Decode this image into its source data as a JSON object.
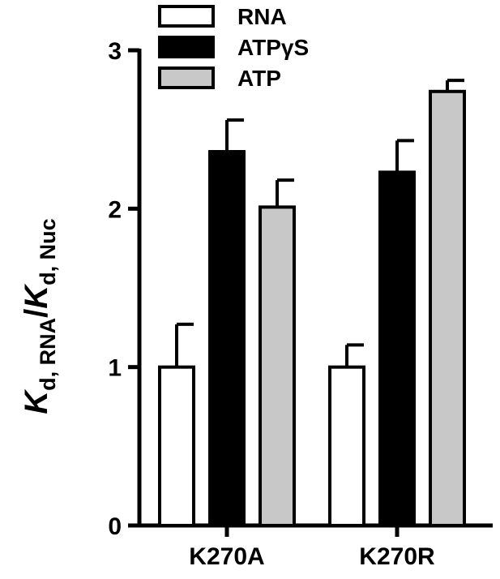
{
  "chart_data": {
    "type": "bar",
    "categories": [
      "K270A",
      "K270R"
    ],
    "series": [
      {
        "name": "RNA",
        "values": [
          1.0,
          1.0
        ],
        "errors": [
          0.27,
          0.14
        ],
        "color": "#ffffff"
      },
      {
        "name": "ATPγS",
        "values": [
          2.36,
          2.23
        ],
        "errors": [
          0.2,
          0.2
        ],
        "color": "#000000"
      },
      {
        "name": "ATP",
        "values": [
          2.01,
          2.74
        ],
        "errors": [
          0.17,
          0.07
        ],
        "color": "#c8c8c8"
      }
    ],
    "ylim": [
      0,
      3
    ],
    "yticks": [
      "0",
      "1",
      "2",
      "3"
    ],
    "ylabel": {
      "k1": "K",
      "sub1": "d, RNA",
      "slash": "/",
      "k2": "K",
      "sub2": "d, Nuc"
    },
    "legend": {
      "position": "top-left",
      "entries": [
        "RNA",
        "ATPγS",
        "ATP"
      ]
    },
    "grid": false
  }
}
